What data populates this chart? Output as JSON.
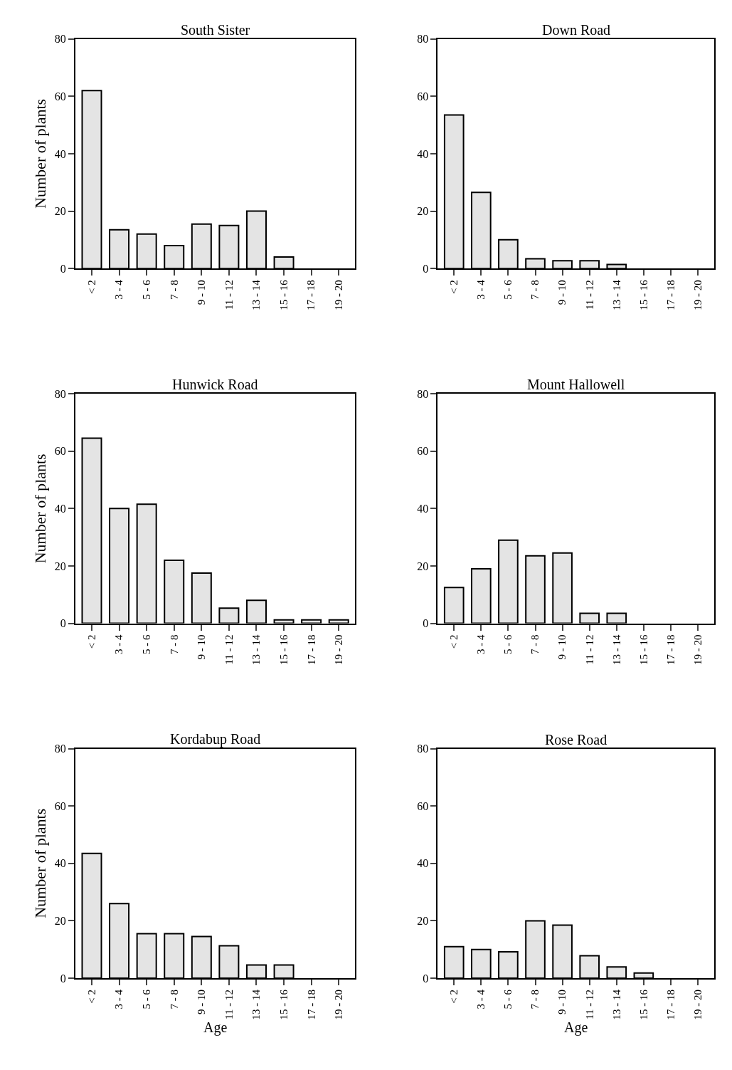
{
  "chart_data": [
    {
      "type": "bar",
      "title": "South Sister",
      "ylabel": "Number of plants",
      "categories": [
        "< 2",
        "3 - 4",
        "5 - 6",
        "7 - 8",
        "9 - 10",
        "11 - 12",
        "13 - 14",
        "15 - 16",
        "17 - 18",
        "19 - 20"
      ],
      "values": [
        62,
        13.5,
        12,
        8,
        15.5,
        15,
        20,
        4,
        0,
        0
      ],
      "color": "#e4e4e4",
      "ylim": [
        0,
        80
      ],
      "yticks": [
        0,
        20,
        40,
        60,
        80
      ]
    },
    {
      "type": "bar",
      "title": "Down Road",
      "categories": [
        "< 2",
        "3 - 4",
        "5 - 6",
        "7 - 8",
        "9 - 10",
        "11 - 12",
        "13 - 14",
        "15 - 16",
        "17 - 18",
        "19 - 20"
      ],
      "values": [
        53.5,
        26.5,
        10,
        3.4,
        2.7,
        2.7,
        1.4,
        0,
        0,
        0
      ],
      "color": "#e4e4e4",
      "ylim": [
        0,
        80
      ],
      "yticks": [
        0,
        20,
        40,
        60,
        80
      ]
    },
    {
      "type": "bar",
      "title": "Hunwick Road",
      "ylabel": "Number of plants",
      "categories": [
        "< 2",
        "3 - 4",
        "5 - 6",
        "7 - 8",
        "9 - 10",
        "11 - 12",
        "13 - 14",
        "15 - 16",
        "17 - 18",
        "19 - 20"
      ],
      "values": [
        64.5,
        40,
        41.5,
        22,
        17.5,
        5.3,
        8,
        1.2,
        1.2,
        1.2
      ],
      "color": "#e4e4e4",
      "ylim": [
        0,
        80
      ],
      "yticks": [
        0,
        20,
        40,
        60,
        80
      ]
    },
    {
      "type": "bar",
      "title": "Mount Hallowell",
      "categories": [
        "< 2",
        "3 - 4",
        "5 - 6",
        "7 - 8",
        "9 - 10",
        "11 - 12",
        "13 - 14",
        "15 - 16",
        "17 - 18",
        "19 - 20"
      ],
      "values": [
        12.5,
        19,
        29,
        23.5,
        24.5,
        3.5,
        3.5,
        0,
        0,
        0
      ],
      "color": "#e4e4e4",
      "ylim": [
        0,
        80
      ],
      "yticks": [
        0,
        20,
        40,
        60,
        80
      ]
    },
    {
      "type": "bar",
      "title": "Kordabup Road",
      "ylabel": "Number of plants",
      "xlabel": "Age",
      "categories": [
        "< 2",
        "3 - 4",
        "5 - 6",
        "7 - 8",
        "9 - 10",
        "11 - 12",
        "13 - 14",
        "15 - 16",
        "17 - 18",
        "19 - 20"
      ],
      "values": [
        43.5,
        26,
        15.5,
        15.5,
        14.5,
        11.3,
        4.6,
        4.6,
        0,
        0
      ],
      "color": "#e4e4e4",
      "ylim": [
        0,
        80
      ],
      "yticks": [
        0,
        20,
        40,
        60,
        80
      ]
    },
    {
      "type": "bar",
      "title": "Rose Road",
      "xlabel": "Age",
      "categories": [
        "< 2",
        "3 - 4",
        "5 - 6",
        "7 - 8",
        "9 - 10",
        "11 - 12",
        "13 - 14",
        "15 - 16",
        "17 - 18",
        "19 - 20"
      ],
      "values": [
        11,
        10,
        9.2,
        20,
        18.5,
        7.8,
        3.9,
        1.8,
        0,
        0
      ],
      "color": "#e4e4e4",
      "ylim": [
        0,
        80
      ],
      "yticks": [
        0,
        20,
        40,
        60,
        80
      ]
    }
  ]
}
